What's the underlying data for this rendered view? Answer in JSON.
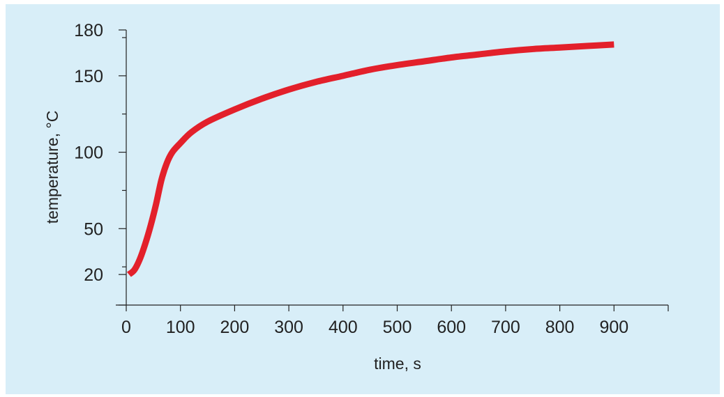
{
  "chart_data": {
    "type": "line",
    "title": "",
    "xlabel": "time, s",
    "ylabel": "temperature, °C",
    "xlim": [
      0,
      1000
    ],
    "ylim": [
      0,
      180
    ],
    "x_ticks": [
      0,
      100,
      200,
      300,
      400,
      500,
      600,
      700,
      800,
      900,
      1000
    ],
    "x_tick_labels": [
      "0",
      "100",
      "200",
      "300",
      "400",
      "500",
      "600",
      "700",
      "800",
      "900",
      ""
    ],
    "y_ticks": [
      0,
      20,
      50,
      100,
      150,
      180
    ],
    "y_tick_labels": [
      "",
      "20",
      "50",
      "100",
      "150",
      "180"
    ],
    "y_minor_ticks": [
      25,
      75,
      125,
      175
    ],
    "grid": false,
    "legend": "none",
    "background_color": "#d8eef8",
    "series": [
      {
        "color": "#e3202b",
        "x": [
          5,
          15,
          25,
          35,
          45,
          55,
          65,
          75,
          85,
          100,
          120,
          150,
          200,
          250,
          300,
          350,
          400,
          450,
          500,
          550,
          600,
          650,
          700,
          750,
          800,
          850,
          900
        ],
        "y": [
          20,
          23,
          30,
          40,
          52,
          66,
          82,
          93,
          100,
          106,
          113,
          120,
          128,
          135,
          141,
          146,
          150,
          154,
          157,
          159.5,
          162,
          164,
          166,
          167.5,
          168.5,
          169.5,
          170.5
        ]
      }
    ]
  }
}
